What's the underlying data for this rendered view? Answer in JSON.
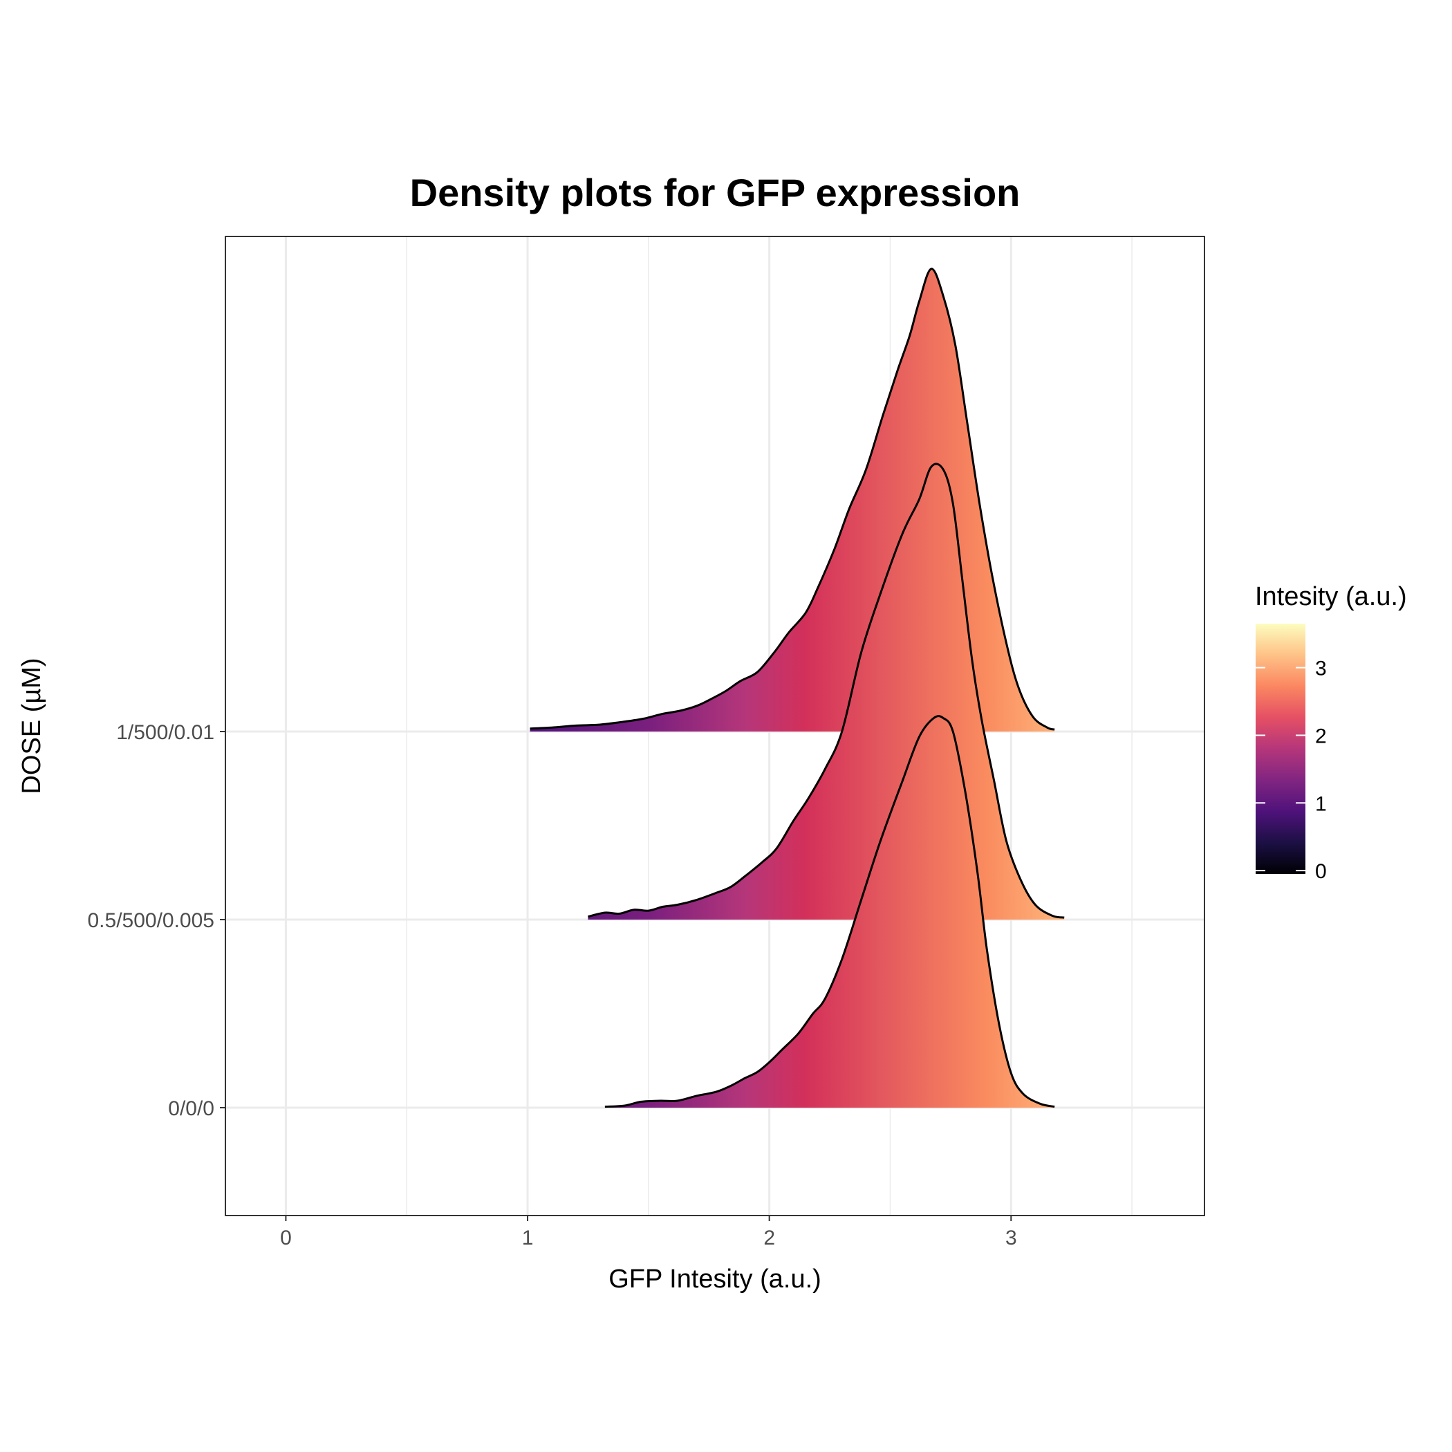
{
  "chart_data": {
    "type": "ridgeline-density",
    "title": "Density plots for GFP expression",
    "xlabel": "GFP Intesity (a.u.)",
    "ylabel": "DOSE (µM)",
    "xlim": [
      -0.25,
      3.8
    ],
    "x_ticks": [
      "0",
      "1",
      "2",
      "3"
    ],
    "x_tick_values": [
      0,
      1,
      2,
      3
    ],
    "x_minor_grid": [
      0.5,
      1.5,
      2.5,
      3.5
    ],
    "grid": true,
    "categories": [
      "0/0/0",
      "0.5/500/0.005",
      "1/500/0.01"
    ],
    "series": [
      {
        "category": "0/0/0",
        "points": [
          [
            1.32,
            0.01
          ],
          [
            1.4,
            0.02
          ],
          [
            1.47,
            0.06
          ],
          [
            1.55,
            0.07
          ],
          [
            1.62,
            0.07
          ],
          [
            1.7,
            0.12
          ],
          [
            1.78,
            0.16
          ],
          [
            1.84,
            0.22
          ],
          [
            1.9,
            0.3
          ],
          [
            1.95,
            0.36
          ],
          [
            2.0,
            0.46
          ],
          [
            2.05,
            0.58
          ],
          [
            2.12,
            0.75
          ],
          [
            2.18,
            0.95
          ],
          [
            2.23,
            1.1
          ],
          [
            2.3,
            1.5
          ],
          [
            2.38,
            2.1
          ],
          [
            2.46,
            2.7
          ],
          [
            2.55,
            3.3
          ],
          [
            2.62,
            3.75
          ],
          [
            2.68,
            3.94
          ],
          [
            2.72,
            3.94
          ],
          [
            2.76,
            3.8
          ],
          [
            2.81,
            3.2
          ],
          [
            2.86,
            2.4
          ],
          [
            2.9,
            1.6
          ],
          [
            2.95,
            0.85
          ],
          [
            3.0,
            0.35
          ],
          [
            3.05,
            0.14
          ],
          [
            3.12,
            0.04
          ],
          [
            3.18,
            0.01
          ]
        ]
      },
      {
        "category": "0.5/500/0.005",
        "points": [
          [
            1.25,
            0.03
          ],
          [
            1.32,
            0.07
          ],
          [
            1.38,
            0.06
          ],
          [
            1.44,
            0.1
          ],
          [
            1.5,
            0.09
          ],
          [
            1.56,
            0.13
          ],
          [
            1.62,
            0.15
          ],
          [
            1.7,
            0.2
          ],
          [
            1.78,
            0.27
          ],
          [
            1.84,
            0.33
          ],
          [
            1.9,
            0.44
          ],
          [
            1.97,
            0.58
          ],
          [
            2.03,
            0.72
          ],
          [
            2.1,
            1.0
          ],
          [
            2.16,
            1.22
          ],
          [
            2.23,
            1.52
          ],
          [
            2.3,
            1.9
          ],
          [
            2.38,
            2.7
          ],
          [
            2.46,
            3.3
          ],
          [
            2.55,
            3.9
          ],
          [
            2.62,
            4.25
          ],
          [
            2.67,
            4.58
          ],
          [
            2.72,
            4.55
          ],
          [
            2.76,
            4.2
          ],
          [
            2.8,
            3.4
          ],
          [
            2.84,
            2.6
          ],
          [
            2.88,
            2.0
          ],
          [
            2.93,
            1.4
          ],
          [
            2.98,
            0.8
          ],
          [
            3.04,
            0.4
          ],
          [
            3.1,
            0.15
          ],
          [
            3.17,
            0.04
          ],
          [
            3.22,
            0.02
          ]
        ]
      },
      {
        "category": "1/500/0.01",
        "points": [
          [
            1.01,
            0.03
          ],
          [
            1.1,
            0.04
          ],
          [
            1.2,
            0.06
          ],
          [
            1.3,
            0.07
          ],
          [
            1.4,
            0.1
          ],
          [
            1.48,
            0.13
          ],
          [
            1.56,
            0.18
          ],
          [
            1.63,
            0.21
          ],
          [
            1.7,
            0.26
          ],
          [
            1.76,
            0.33
          ],
          [
            1.82,
            0.41
          ],
          [
            1.88,
            0.51
          ],
          [
            1.95,
            0.6
          ],
          [
            2.02,
            0.8
          ],
          [
            2.08,
            1.0
          ],
          [
            2.15,
            1.2
          ],
          [
            2.2,
            1.45
          ],
          [
            2.27,
            1.85
          ],
          [
            2.33,
            2.25
          ],
          [
            2.4,
            2.65
          ],
          [
            2.47,
            3.2
          ],
          [
            2.53,
            3.65
          ],
          [
            2.58,
            4.0
          ],
          [
            2.62,
            4.35
          ],
          [
            2.67,
            4.68
          ],
          [
            2.72,
            4.4
          ],
          [
            2.77,
            3.9
          ],
          [
            2.82,
            3.1
          ],
          [
            2.87,
            2.3
          ],
          [
            2.92,
            1.6
          ],
          [
            2.98,
            0.9
          ],
          [
            3.03,
            0.45
          ],
          [
            3.09,
            0.15
          ],
          [
            3.15,
            0.04
          ],
          [
            3.18,
            0.02
          ]
        ]
      }
    ],
    "fill": "x-gradient mapped to intensity, magma palette",
    "legend": {
      "title": "Intesity (a.u.)",
      "ticks": [
        "0",
        "1",
        "2",
        "3"
      ],
      "tick_values": [
        0,
        1,
        2,
        3
      ],
      "range": [
        -0.05,
        3.65
      ],
      "placement": "right",
      "palette": [
        "#000004",
        "#170f3c",
        "#420a68",
        "#6b176e",
        "#932667",
        "#bc3754",
        "#dd513a",
        "#f37819",
        "#fca50a",
        "#f6d746",
        "#fcfdbf"
      ],
      "gradient_colors": [
        "#000004",
        "#1c1044",
        "#4f127b",
        "#812581",
        "#b5367a",
        "#e55064",
        "#fb8761",
        "#fec287",
        "#fcfdbf"
      ]
    },
    "curve_fill_stops": [
      {
        "x": 1.0,
        "color": "#4f127b"
      },
      {
        "x": 1.5,
        "color": "#7a1f7e"
      },
      {
        "x": 1.9,
        "color": "#b5367a"
      },
      {
        "x": 2.15,
        "color": "#d3305a"
      },
      {
        "x": 2.5,
        "color": "#e55c5e"
      },
      {
        "x": 2.9,
        "color": "#fa8c5f"
      },
      {
        "x": 3.2,
        "color": "#feb47b"
      }
    ]
  }
}
